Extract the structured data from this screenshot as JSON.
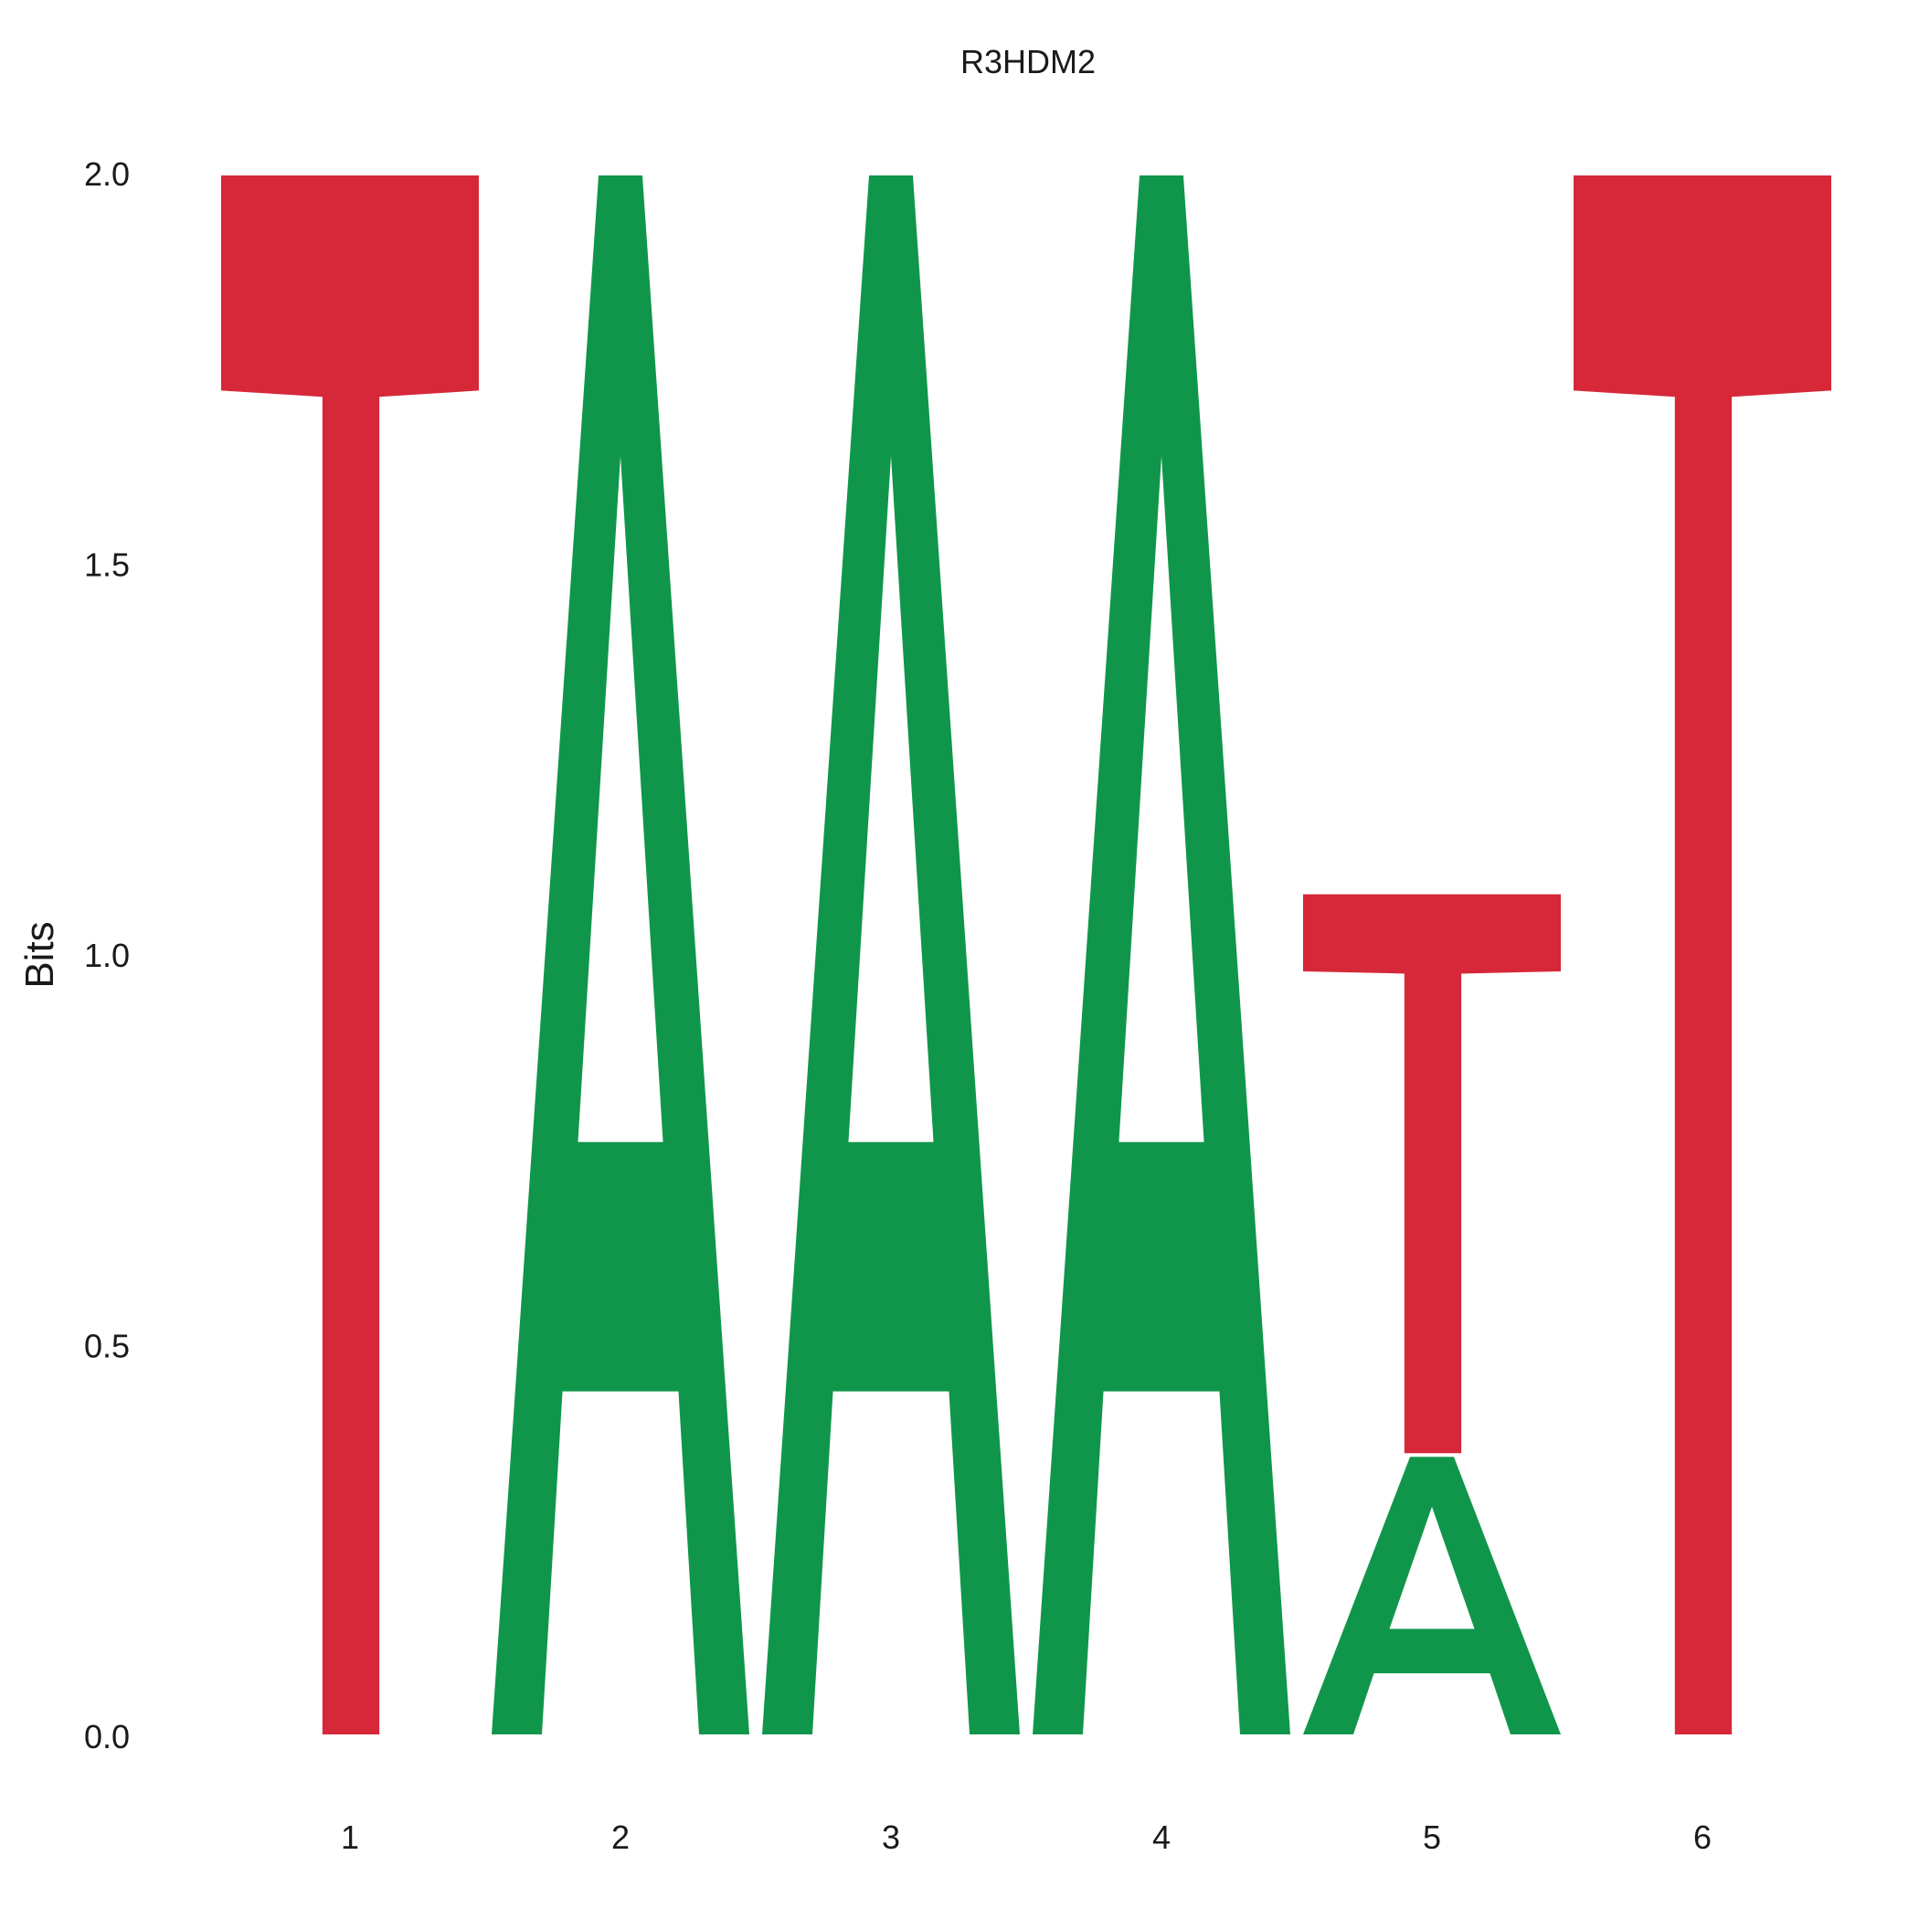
{
  "chart_data": {
    "type": "sequence-logo",
    "title": "R3HDM2",
    "xlabel": "",
    "ylabel": "Bits",
    "ylim": [
      0,
      2
    ],
    "yticks": [
      "0.0",
      "0.5",
      "1.0",
      "1.5",
      "2.0"
    ],
    "ytick_values": [
      0,
      0.5,
      1,
      1.5,
      2
    ],
    "positions": [
      "1",
      "2",
      "3",
      "4",
      "5",
      "6"
    ],
    "colors": {
      "T": "#d62839",
      "A": "#10964a"
    },
    "letters": [
      [
        {
          "letter": "T",
          "bits": 2.0
        }
      ],
      [
        {
          "letter": "A",
          "bits": 2.0
        }
      ],
      [
        {
          "letter": "A",
          "bits": 2.0
        }
      ],
      [
        {
          "letter": "A",
          "bits": 2.0
        }
      ],
      [
        {
          "letter": "A",
          "bits": 0.36
        },
        {
          "letter": "T",
          "bits": 0.72
        }
      ],
      [
        {
          "letter": "T",
          "bits": 2.0
        }
      ]
    ],
    "grid": false,
    "legend": "none"
  }
}
